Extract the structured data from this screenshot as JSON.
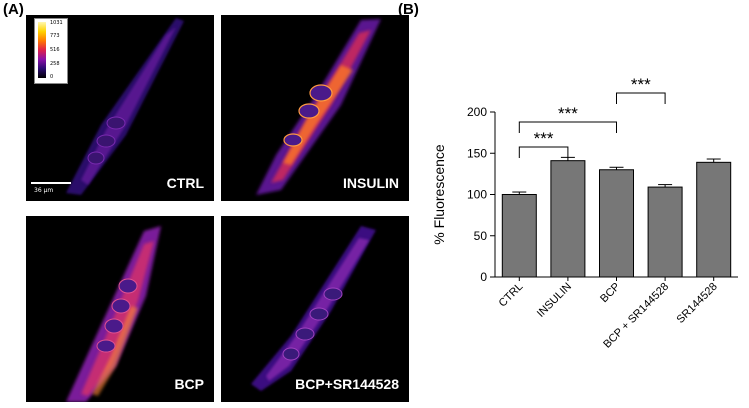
{
  "panels": {
    "a": "(A)",
    "b": "(B)"
  },
  "images": [
    {
      "caption": "CTRL"
    },
    {
      "caption": "INSULIN"
    },
    {
      "caption": "BCP"
    },
    {
      "caption": "BCP+SR144528"
    }
  ],
  "colorbar": {
    "ticks": [
      "1031",
      "773",
      "516",
      "258",
      "0"
    ]
  },
  "scalebar": {
    "label": "36 µm"
  },
  "chart_data": {
    "type": "bar",
    "categories": [
      "CTRL",
      "INSULIN",
      "BCP",
      "BCP + SR144528",
      "SR144528"
    ],
    "values": [
      100,
      141,
      130,
      109,
      139
    ],
    "errors": [
      3,
      4,
      3,
      3,
      4
    ],
    "ylabel": "% Fluorescence",
    "xlabel": "",
    "ylim": [
      0,
      200
    ],
    "yticks": [
      0,
      50,
      100,
      150,
      200
    ],
    "bar_color": "#777777",
    "significance": [
      {
        "from": 0,
        "to": 1,
        "label": "***"
      },
      {
        "from": 0,
        "to": 2,
        "label": "***"
      },
      {
        "from": 2,
        "to": 3,
        "label": "***"
      }
    ]
  }
}
